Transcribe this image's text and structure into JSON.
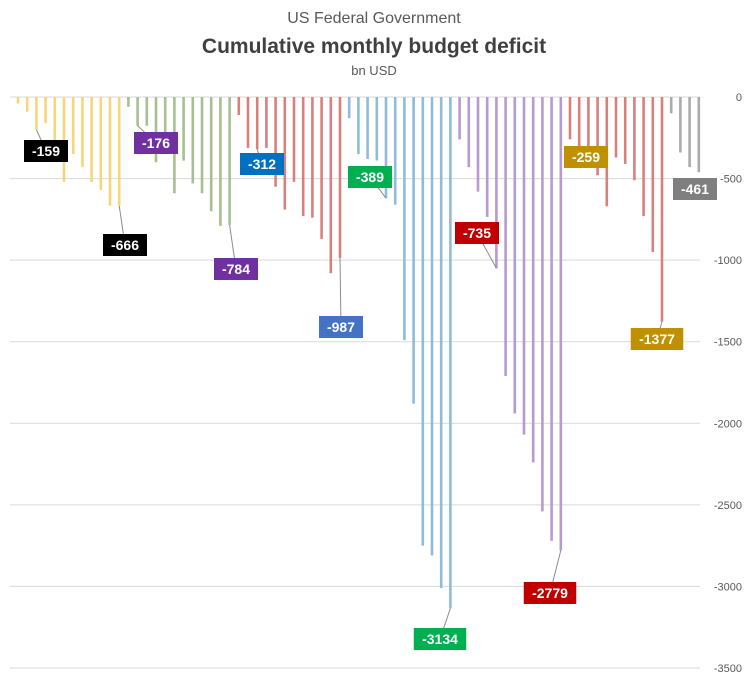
{
  "header": {
    "supertitle": "US Federal Government",
    "title": "Cumulative monthly budget deficit",
    "subtitle": "bn USD"
  },
  "chart_data": {
    "type": "bar",
    "supertitle": "US Federal Government",
    "title": "Cumulative monthly budget deficit",
    "ylabel": "bn USD",
    "ylim": [
      -3500,
      0
    ],
    "yticks": [
      0,
      -500,
      -1000,
      -1500,
      -2000,
      -2500,
      -3000,
      -3500
    ],
    "grid": true,
    "legend": "none",
    "series": [
      {
        "color": "#f5d77a",
        "values": [
          -40,
          -90,
          -200,
          -159,
          -300,
          -520,
          -350,
          -430,
          -520,
          -570,
          -666,
          -666
        ]
      },
      {
        "color": "#a8bf94",
        "values": [
          -60,
          -176,
          -176,
          -400,
          -220,
          -590,
          -390,
          -530,
          -590,
          -700,
          -790,
          -784
        ]
      },
      {
        "color": "#d9807d",
        "values": [
          -110,
          -312,
          -320,
          -312,
          -550,
          -690,
          -520,
          -730,
          -740,
          -870,
          -1080,
          -987
        ]
      },
      {
        "color": "#8fbcd9",
        "values": [
          -130,
          -350,
          -380,
          -389,
          -620,
          -660,
          -1490,
          -1880,
          -2750,
          -2810,
          -3010,
          -3134
        ]
      },
      {
        "color": "#b79bd0",
        "values": [
          -260,
          -430,
          -580,
          -735,
          -1050,
          -1710,
          -1940,
          -2070,
          -2240,
          -2540,
          -2720,
          -2779
        ]
      },
      {
        "color": "#d9807d",
        "values": [
          -259,
          -370,
          -360,
          -480,
          -670,
          -370,
          -410,
          -510,
          -730,
          -950,
          -1377
        ]
      },
      {
        "color": "#ababab",
        "values": [
          -100,
          -340,
          -430,
          -461
        ]
      }
    ],
    "annotations": [
      {
        "text": "-159",
        "color": "#000000"
      },
      {
        "text": "-666",
        "color": "#000000"
      },
      {
        "text": "-176",
        "color": "#7030a0"
      },
      {
        "text": "-784",
        "color": "#7030a0"
      },
      {
        "text": "-312",
        "color": "#0070c0"
      },
      {
        "text": "-987",
        "color": "#4472c4"
      },
      {
        "text": "-389",
        "color": "#00b050"
      },
      {
        "text": "-3134",
        "color": "#00b050"
      },
      {
        "text": "-735",
        "color": "#c00000"
      },
      {
        "text": "-2779",
        "color": "#c00000"
      },
      {
        "text": "-259",
        "color": "#bf9000"
      },
      {
        "text": "-1377",
        "color": "#bf9000"
      },
      {
        "text": "-461",
        "color": "#7f7f7f"
      }
    ]
  }
}
